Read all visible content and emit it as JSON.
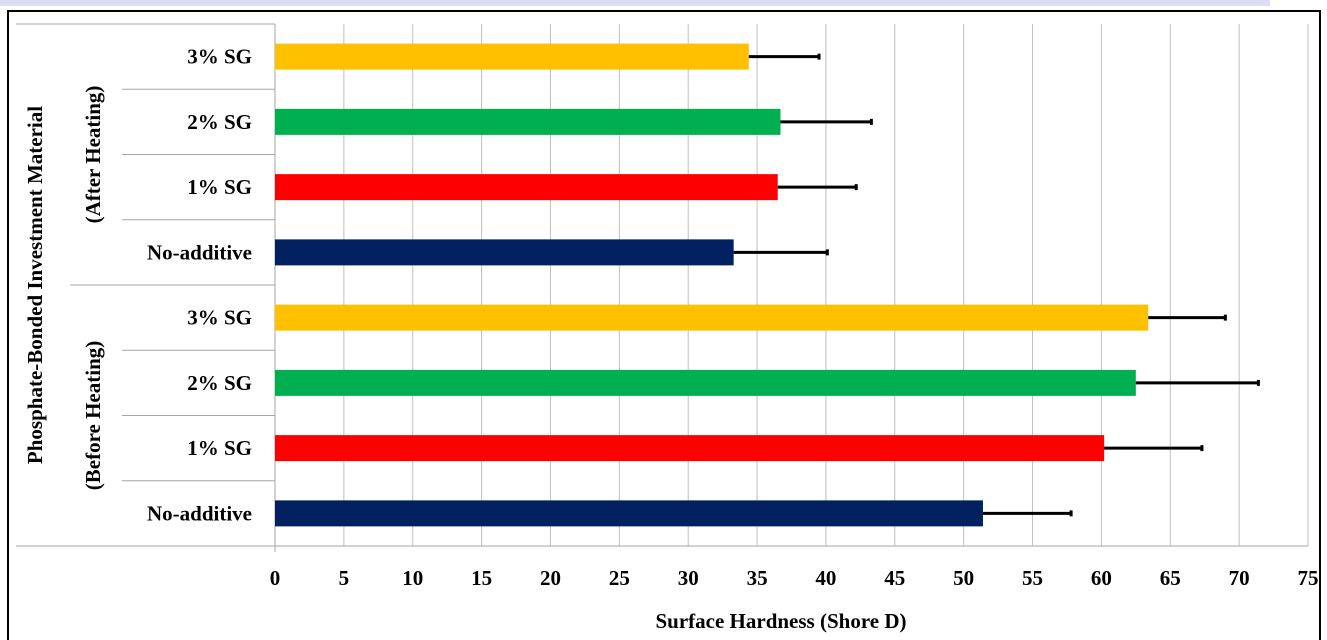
{
  "chart_data": {
    "type": "bar",
    "orientation": "horizontal",
    "xlabel": "Surface Hardness (Shore D)",
    "ylabel": "Phosphate-Bonded Investment Material",
    "xlim": [
      0,
      75
    ],
    "xticks": [
      "0",
      "5",
      "10",
      "15",
      "20",
      "25",
      "30",
      "35",
      "40",
      "45",
      "50",
      "55",
      "60",
      "65",
      "70",
      "75"
    ],
    "grid": true,
    "groups": [
      {
        "label": "(Before Heating)",
        "bars": [
          {
            "category": "No-additive",
            "value": 51.4,
            "error": 6.4,
            "color": "#002060"
          },
          {
            "category": "1% SG",
            "value": 60.2,
            "error": 7.1,
            "color": "#ff0000"
          },
          {
            "category": "2% SG",
            "value": 62.5,
            "error": 8.9,
            "color": "#00b050"
          },
          {
            "category": "3% SG",
            "value": 63.4,
            "error": 5.6,
            "color": "#ffc000"
          }
        ]
      },
      {
        "label": "(After Heating)",
        "bars": [
          {
            "category": "No-additive",
            "value": 33.3,
            "error": 6.8,
            "color": "#002060"
          },
          {
            "category": "1% SG",
            "value": 36.5,
            "error": 5.7,
            "color": "#ff0000"
          },
          {
            "category": "2% SG",
            "value": 36.7,
            "error": 6.6,
            "color": "#00b050"
          },
          {
            "category": "3% SG",
            "value": 34.4,
            "error": 5.1,
            "color": "#ffc000"
          }
        ]
      }
    ]
  }
}
